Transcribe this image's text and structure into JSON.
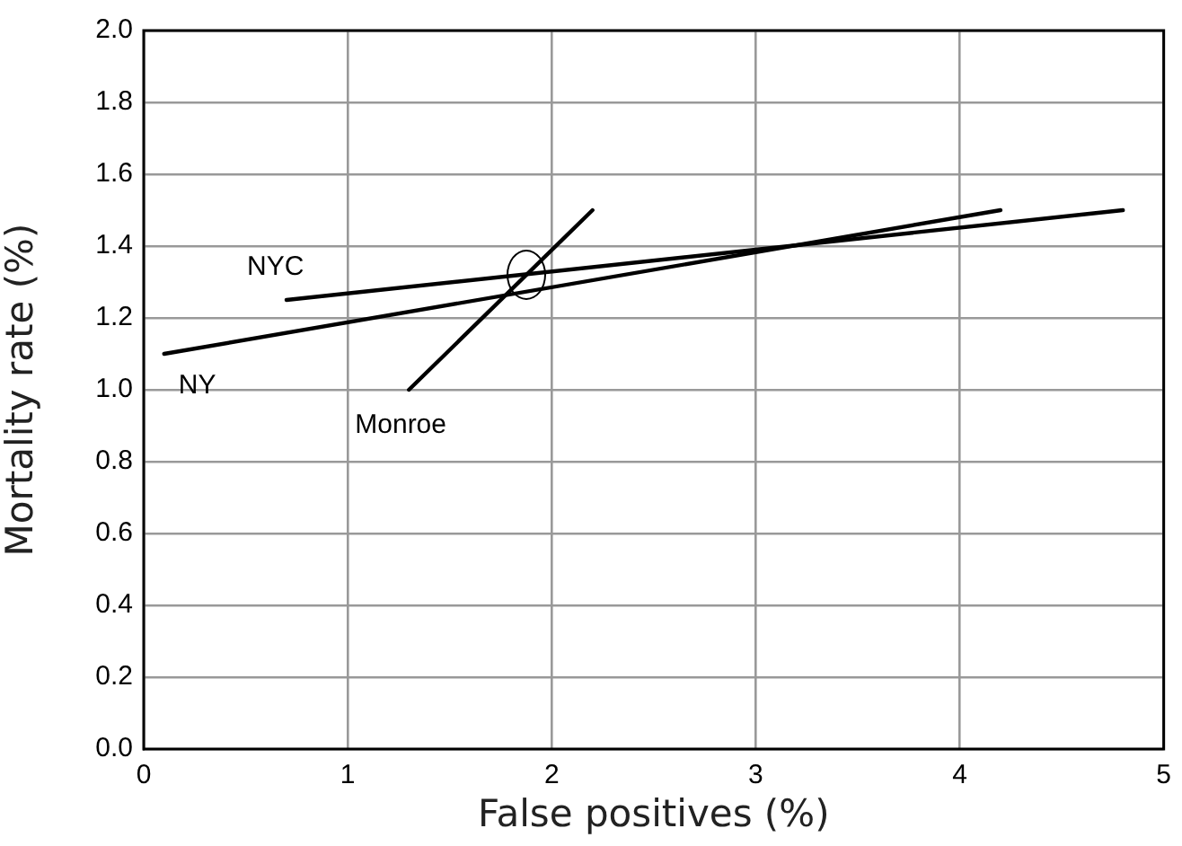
{
  "chart_data": {
    "type": "line",
    "xlabel": "False positives (%)",
    "ylabel": "Mortality rate (%)",
    "xlim": [
      0,
      5
    ],
    "xticks": [
      0,
      1,
      2,
      3,
      4,
      5
    ],
    "ylim": [
      0,
      2
    ],
    "yticks": [
      {
        "value": 0,
        "label": "0.0"
      },
      {
        "value": 0.2,
        "label": "0.2"
      },
      {
        "value": 0.4,
        "label": "0.4"
      },
      {
        "value": 0.6,
        "label": "0.6"
      },
      {
        "value": 0.8,
        "label": "0.8"
      },
      {
        "value": 1,
        "label": "1.0"
      },
      {
        "value": 1.2,
        "label": "1.2"
      },
      {
        "value": 1.4,
        "label": "1.4"
      },
      {
        "value": 1.6,
        "label": "1.6"
      },
      {
        "value": 1.8,
        "label": "1.8"
      },
      {
        "value": 2,
        "label": "2.0"
      }
    ],
    "grid": true,
    "legend": false,
    "marker": "none",
    "line_style": "solid",
    "series": [
      {
        "name": "NY",
        "color": "#000000",
        "x": [
          0.1,
          4.2
        ],
        "values": [
          1.1,
          1.5
        ]
      },
      {
        "name": "NYC",
        "color": "#000000",
        "x": [
          0.7,
          4.8
        ],
        "values": [
          1.25,
          1.5
        ]
      },
      {
        "name": "Monroe",
        "color": "#000000",
        "x": [
          1.3,
          2.2
        ],
        "values": [
          1.0,
          1.5
        ]
      }
    ]
  }
}
